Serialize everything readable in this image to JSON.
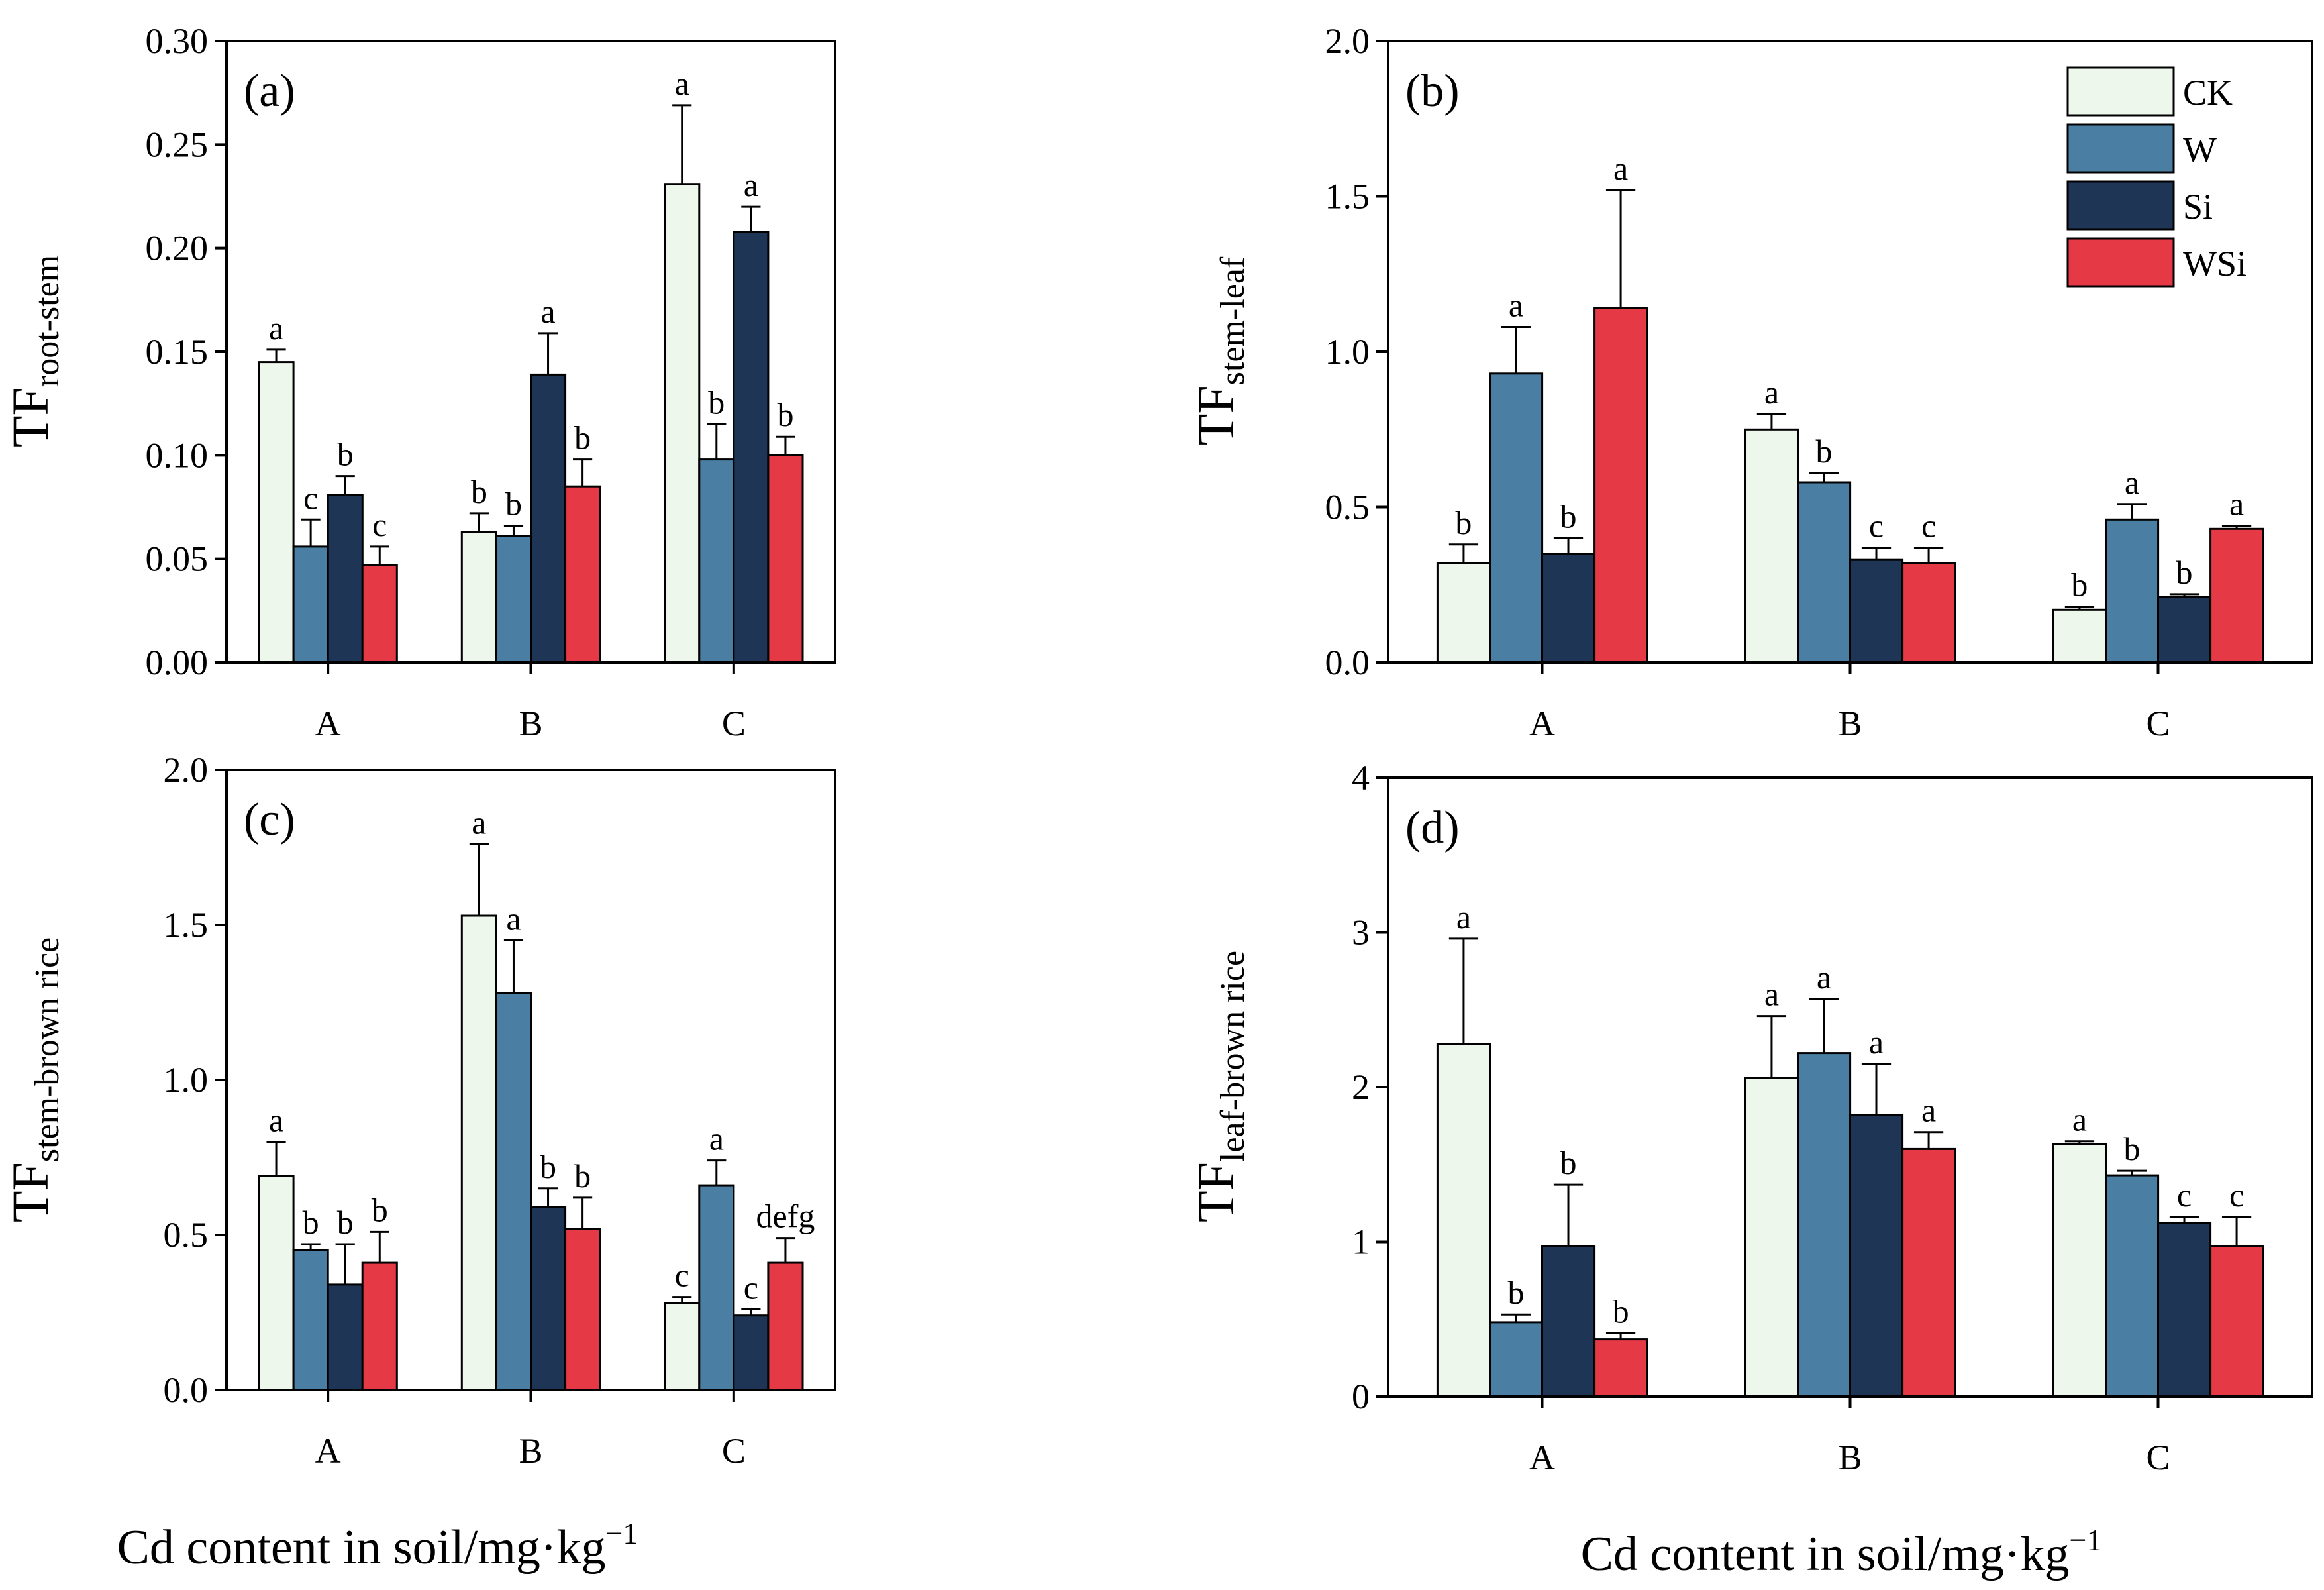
{
  "colors": {
    "CK": "#eef7ec",
    "W": "#4a7fa3",
    "Si": "#1f3556",
    "WSi": "#e63946"
  },
  "legend": [
    "CK",
    "W",
    "Si",
    "WSi"
  ],
  "xlabel": {
    "main": "Cd content in soil/mg·kg",
    "sup": "−1"
  },
  "chart_data": [
    {
      "type": "bar",
      "panel": "(a)",
      "ylabel_main": "TF",
      "ylabel_sub": "root-stem",
      "categories": [
        "A",
        "B",
        "C"
      ],
      "ylim": [
        0,
        0.3
      ],
      "yticks": [
        "0.00",
        "0.05",
        "0.10",
        "0.15",
        "0.20",
        "0.25",
        "0.30"
      ],
      "series": [
        {
          "name": "CK",
          "values": [
            0.145,
            0.063,
            0.231
          ],
          "errors": [
            0.006,
            0.009,
            0.038
          ],
          "letters": [
            "a",
            "b",
            "a"
          ]
        },
        {
          "name": "W",
          "values": [
            0.056,
            0.061,
            0.098
          ],
          "errors": [
            0.013,
            0.005,
            0.017
          ],
          "letters": [
            "c",
            "b",
            "b"
          ]
        },
        {
          "name": "Si",
          "values": [
            0.081,
            0.139,
            0.208
          ],
          "errors": [
            0.009,
            0.02,
            0.012
          ],
          "letters": [
            "b",
            "a",
            "a"
          ]
        },
        {
          "name": "WSi",
          "values": [
            0.047,
            0.085,
            0.1
          ],
          "errors": [
            0.009,
            0.013,
            0.009
          ],
          "letters": [
            "c",
            "b",
            "b"
          ]
        }
      ]
    },
    {
      "type": "bar",
      "panel": "(b)",
      "ylabel_main": "TF",
      "ylabel_sub": "stem-leaf",
      "categories": [
        "A",
        "B",
        "C"
      ],
      "ylim": [
        0,
        2.0
      ],
      "yticks": [
        "0.0",
        "0.5",
        "1.0",
        "1.5",
        "2.0"
      ],
      "series": [
        {
          "name": "CK",
          "values": [
            0.32,
            0.75,
            0.17
          ],
          "errors": [
            0.06,
            0.05,
            0.01
          ],
          "letters": [
            "b",
            "a",
            "b"
          ]
        },
        {
          "name": "W",
          "values": [
            0.93,
            0.58,
            0.46
          ],
          "errors": [
            0.15,
            0.03,
            0.05
          ],
          "letters": [
            "a",
            "b",
            "a"
          ]
        },
        {
          "name": "Si",
          "values": [
            0.35,
            0.33,
            0.21
          ],
          "errors": [
            0.05,
            0.04,
            0.01
          ],
          "letters": [
            "b",
            "c",
            "b"
          ]
        },
        {
          "name": "WSi",
          "values": [
            1.14,
            0.32,
            0.43
          ],
          "errors": [
            0.38,
            0.05,
            0.01
          ],
          "letters": [
            "a",
            "c",
            "a"
          ]
        }
      ]
    },
    {
      "type": "bar",
      "panel": "(c)",
      "ylabel_main": "TF",
      "ylabel_sub": "stem-brown rice",
      "categories": [
        "A",
        "B",
        "C"
      ],
      "ylim": [
        0,
        2.0
      ],
      "yticks": [
        "0.0",
        "0.5",
        "1.0",
        "1.5",
        "2.0"
      ],
      "series": [
        {
          "name": "CK",
          "values": [
            0.69,
            1.53,
            0.28
          ],
          "errors": [
            0.11,
            0.23,
            0.02
          ],
          "letters": [
            "a",
            "a",
            "c"
          ]
        },
        {
          "name": "W",
          "values": [
            0.45,
            1.28,
            0.66
          ],
          "errors": [
            0.02,
            0.17,
            0.08
          ],
          "letters": [
            "b",
            "a",
            "a"
          ]
        },
        {
          "name": "Si",
          "values": [
            0.34,
            0.59,
            0.24
          ],
          "errors": [
            0.13,
            0.06,
            0.02
          ],
          "letters": [
            "b",
            "b",
            "c"
          ]
        },
        {
          "name": "WSi",
          "values": [
            0.41,
            0.52,
            0.41
          ],
          "errors": [
            0.1,
            0.1,
            0.08
          ],
          "letters": [
            "b",
            "b",
            "defg"
          ]
        }
      ]
    },
    {
      "type": "bar",
      "panel": "(d)",
      "ylabel_main": "TF",
      "ylabel_sub": "leaf-brown rice",
      "categories": [
        "A",
        "B",
        "C"
      ],
      "ylim": [
        0,
        4
      ],
      "yticks": [
        "0",
        "1",
        "2",
        "3",
        "4"
      ],
      "series": [
        {
          "name": "CK",
          "values": [
            2.28,
            2.06,
            1.63
          ],
          "errors": [
            0.68,
            0.4,
            0.02
          ],
          "letters": [
            "a",
            "a",
            "a"
          ]
        },
        {
          "name": "W",
          "values": [
            0.48,
            2.22,
            1.43
          ],
          "errors": [
            0.05,
            0.35,
            0.03
          ],
          "letters": [
            "b",
            "a",
            "b"
          ]
        },
        {
          "name": "Si",
          "values": [
            0.97,
            1.82,
            1.12
          ],
          "errors": [
            0.4,
            0.33,
            0.04
          ],
          "letters": [
            "b",
            "a",
            "c"
          ]
        },
        {
          "name": "WSi",
          "values": [
            0.37,
            1.6,
            0.97
          ],
          "errors": [
            0.04,
            0.11,
            0.19
          ],
          "letters": [
            "b",
            "a",
            "c"
          ]
        }
      ]
    }
  ]
}
